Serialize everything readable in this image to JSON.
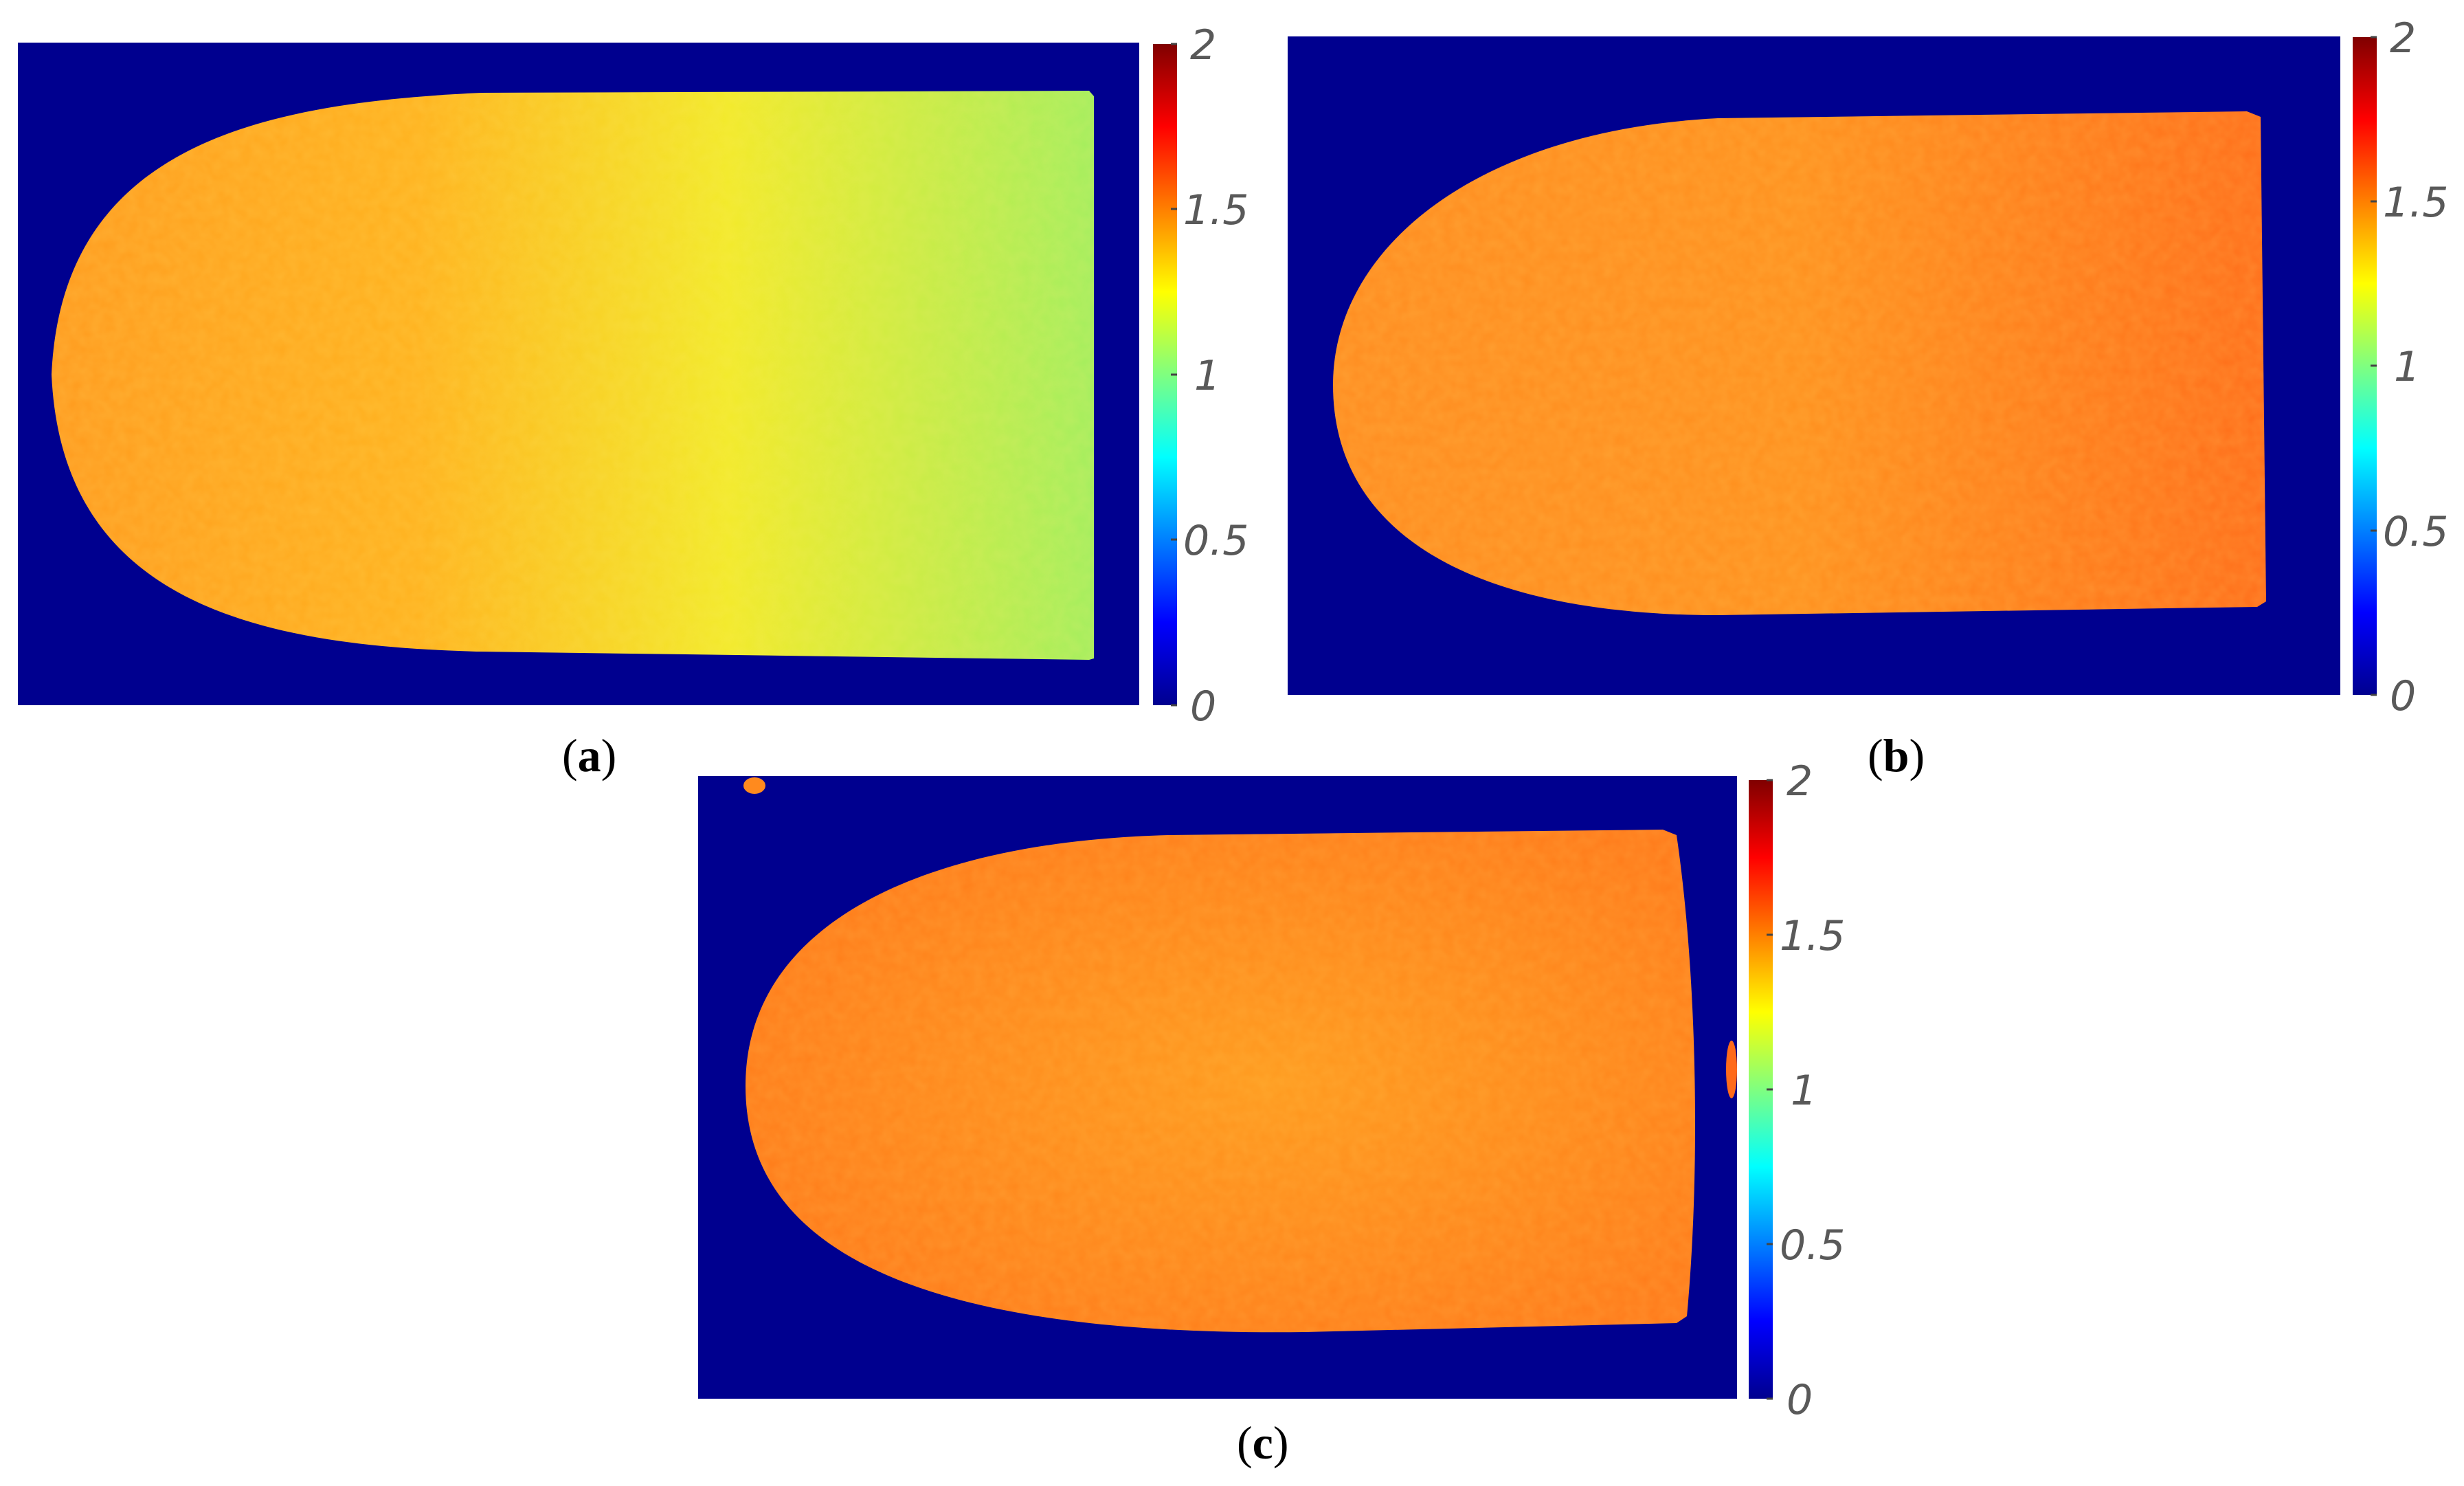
{
  "figure": {
    "panels": [
      {
        "id": "a",
        "caption_open": "(",
        "caption_letter": "a",
        "caption_close": ")"
      },
      {
        "id": "b",
        "caption_open": "(",
        "caption_letter": "b",
        "caption_close": ")"
      },
      {
        "id": "c",
        "caption_open": "(",
        "caption_letter": "c",
        "caption_close": ")"
      }
    ],
    "colorbar": {
      "range": [
        0,
        2
      ],
      "tick_labels": [
        "2",
        "1.5",
        "1",
        "0.5",
        "0"
      ],
      "colormap": "jet"
    },
    "colors": {
      "background": "#00008f",
      "panel_a_left": "#ffa21e",
      "panel_a_mid": "#f5e62a",
      "panel_a_right": "#a6ef5c",
      "panel_b": "#ff8a1e",
      "panel_c": "#ff8c1c"
    }
  }
}
